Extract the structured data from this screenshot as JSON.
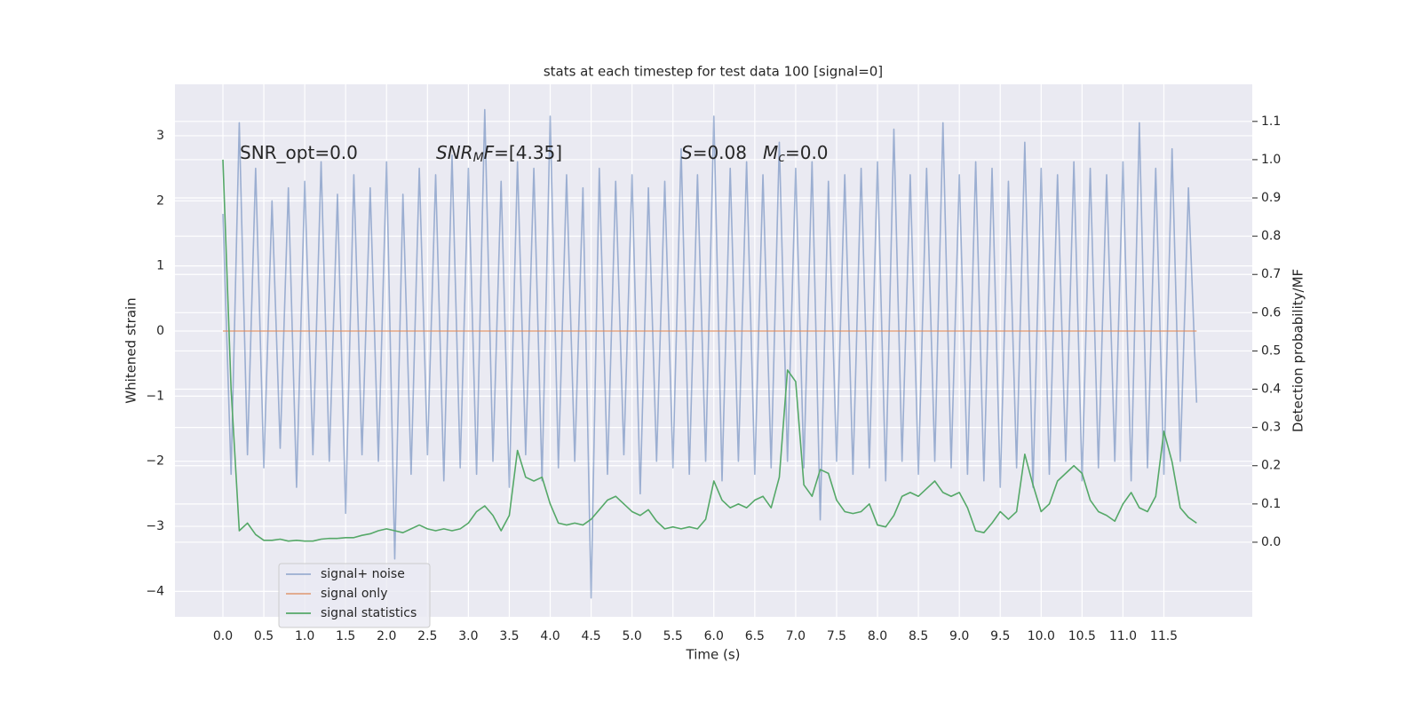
{
  "chart_data": {
    "type": "line",
    "title": "stats at each timestep for test data 100 [signal=0]",
    "xlabel": "Time (s)",
    "ylabel": "Whitened strain",
    "y2label": "Detection probability/MF",
    "grid": true,
    "legend": "lower left",
    "xlim": [
      -0.586,
      12.58
    ],
    "ylim": [
      -4.39,
      3.79
    ],
    "y2lim": [
      -0.195,
      1.197
    ],
    "xticks": [
      {
        "value": 0,
        "label": "0.0"
      },
      0.5,
      {
        "value": 1,
        "label": "1.0"
      },
      1.5,
      {
        "value": 2,
        "label": "2.0"
      },
      2.5,
      {
        "value": 3,
        "label": "3.0"
      },
      3.5,
      {
        "value": 4,
        "label": "4.0"
      },
      4.5,
      {
        "value": 5,
        "label": "5.0"
      },
      5.5,
      {
        "value": 6,
        "label": "6.0"
      },
      6.5,
      {
        "value": 7,
        "label": "7.0"
      },
      7.5,
      {
        "value": 8,
        "label": "8.0"
      },
      8.5,
      {
        "value": 9,
        "label": "9.0"
      },
      9.5,
      {
        "value": 10,
        "label": "10.0"
      },
      10.5,
      {
        "value": 11,
        "label": "11.0"
      },
      11.5
    ],
    "yticks": [
      {
        "value": -4,
        "label": "−4"
      },
      {
        "value": -3,
        "label": "−3"
      },
      {
        "value": -2,
        "label": "−2"
      },
      {
        "value": -1,
        "label": "−1"
      },
      0,
      1,
      2,
      3
    ],
    "y2ticks": [
      {
        "value": 0,
        "label": "0.0"
      },
      0.1,
      0.2,
      0.3,
      0.4,
      0.5,
      0.6,
      0.7,
      0.8,
      0.9,
      {
        "value": 1,
        "label": "1.0"
      },
      1.1
    ],
    "annotations": [
      [
        {
          "text": "SNR_opt=0.0"
        }
      ],
      [
        {
          "text": "SNR",
          "italic": true
        },
        {
          "text": "M",
          "italic": true,
          "sub": true
        },
        {
          "text": "F",
          "italic": true
        },
        {
          "text": "=[4.35]"
        }
      ],
      [
        {
          "text": "S",
          "italic": true
        },
        {
          "text": "=0.08"
        }
      ],
      [
        {
          "text": "M",
          "italic": true
        },
        {
          "text": "c",
          "italic": true,
          "sub": true
        },
        {
          "text": "=0.0"
        }
      ]
    ],
    "x": [
      0,
      0.1,
      0.2,
      0.3,
      0.4,
      0.5,
      0.6,
      0.7,
      0.8,
      0.9,
      1,
      1.1,
      1.2,
      1.3,
      1.4,
      1.5,
      1.6,
      1.7,
      1.8,
      1.9,
      2,
      2.1,
      2.2,
      2.3,
      2.4,
      2.5,
      2.6,
      2.7,
      2.8,
      2.9,
      3,
      3.1,
      3.2,
      3.3,
      3.4,
      3.5,
      3.6,
      3.7,
      3.8,
      3.9,
      4,
      4.1,
      4.2,
      4.3,
      4.4,
      4.5,
      4.6,
      4.7,
      4.8,
      4.9,
      5,
      5.1,
      5.2,
      5.3,
      5.4,
      5.5,
      5.6,
      5.7,
      5.8,
      5.9,
      6,
      6.1,
      6.2,
      6.3,
      6.4,
      6.5,
      6.6,
      6.7,
      6.8,
      6.9,
      7,
      7.1,
      7.2,
      7.3,
      7.4,
      7.5,
      7.6,
      7.7,
      7.8,
      7.9,
      8,
      8.1,
      8.2,
      8.3,
      8.4,
      8.5,
      8.6,
      8.7,
      8.8,
      8.9,
      9,
      9.1,
      9.2,
      9.3,
      9.4,
      9.5,
      9.6,
      9.7,
      9.8,
      9.9,
      10,
      10.1,
      10.2,
      10.3,
      10.4,
      10.5,
      10.6,
      10.7,
      10.8,
      10.9,
      11,
      11.1,
      11.2,
      11.3,
      11.4,
      11.5,
      11.6,
      11.7,
      11.8,
      11.9
    ],
    "series": [
      {
        "name": "signal+ noise",
        "color": "#4c72b0",
        "opacity": 0.5,
        "values": [
          1.8,
          -2.2,
          3.2,
          -1.9,
          2.5,
          -2.1,
          2.0,
          -1.8,
          2.2,
          -2.4,
          2.3,
          -1.9,
          2.6,
          -2.0,
          2.1,
          -2.8,
          2.4,
          -1.9,
          2.2,
          -2.0,
          2.6,
          -3.5,
          2.1,
          -2.2,
          2.5,
          -1.9,
          2.4,
          -2.3,
          2.7,
          -2.1,
          2.5,
          -2.2,
          3.4,
          -2.0,
          2.3,
          -2.4,
          2.6,
          -1.9,
          2.5,
          -2.3,
          3.3,
          -2.1,
          2.4,
          -2.0,
          2.2,
          -4.1,
          2.5,
          -2.2,
          2.3,
          -1.9,
          2.4,
          -2.5,
          2.2,
          -2.0,
          2.3,
          -2.1,
          2.8,
          -2.2,
          2.4,
          -2.0,
          3.3,
          -2.3,
          2.5,
          -2.0,
          2.6,
          -2.2,
          2.4,
          -2.1,
          2.9,
          -2.0,
          2.5,
          -2.1,
          2.6,
          -2.9,
          2.3,
          -2.0,
          2.4,
          -2.2,
          2.5,
          -2.1,
          2.6,
          -2.3,
          3.1,
          -2.0,
          2.4,
          -2.2,
          2.5,
          -2.0,
          3.2,
          -2.1,
          2.4,
          -2.2,
          2.6,
          -2.3,
          2.5,
          -2.4,
          2.3,
          -2.1,
          2.9,
          -2.4,
          2.5,
          -2.2,
          2.4,
          -2.0,
          2.6,
          -2.3,
          2.5,
          -2.1,
          2.4,
          -2.0,
          2.6,
          -2.3,
          3.2,
          -2.1,
          2.5,
          -2.2,
          2.8,
          -2.0,
          2.2,
          -1.1
        ]
      },
      {
        "name": "signal only",
        "color": "#dd8452",
        "opacity": 0.7,
        "values": [
          0,
          0,
          0,
          0,
          0,
          0,
          0,
          0,
          0,
          0,
          0,
          0,
          0,
          0,
          0,
          0,
          0,
          0,
          0,
          0,
          0,
          0,
          0,
          0,
          0,
          0,
          0,
          0,
          0,
          0,
          0,
          0,
          0,
          0,
          0,
          0,
          0,
          0,
          0,
          0,
          0,
          0,
          0,
          0,
          0,
          0,
          0,
          0,
          0,
          0,
          0,
          0,
          0,
          0,
          0,
          0,
          0,
          0,
          0,
          0,
          0,
          0,
          0,
          0,
          0,
          0,
          0,
          0,
          0,
          0,
          0,
          0,
          0,
          0,
          0,
          0,
          0,
          0,
          0,
          0,
          0,
          0,
          0,
          0,
          0,
          0,
          0,
          0,
          0,
          0,
          0,
          0,
          0,
          0,
          0,
          0,
          0,
          0,
          0,
          0,
          0,
          0,
          0,
          0,
          0,
          0,
          0,
          0,
          0,
          0,
          0,
          0,
          0,
          0,
          0,
          0,
          0,
          0,
          0,
          0
        ]
      },
      {
        "name": "signal statistics",
        "color": "#55a868",
        "opacity": 1,
        "axis": "y2",
        "values": [
          1.0,
          0.4,
          0.03,
          0.05,
          0.02,
          0.005,
          0.005,
          0.008,
          0.003,
          0.005,
          0.003,
          0.003,
          0.008,
          0.01,
          0.01,
          0.012,
          0.012,
          0.018,
          0.022,
          0.03,
          0.035,
          0.03,
          0.025,
          0.035,
          0.045,
          0.035,
          0.03,
          0.035,
          0.03,
          0.035,
          0.05,
          0.08,
          0.095,
          0.07,
          0.03,
          0.07,
          0.24,
          0.17,
          0.16,
          0.17,
          0.1,
          0.05,
          0.045,
          0.05,
          0.045,
          0.06,
          0.085,
          0.11,
          0.12,
          0.1,
          0.08,
          0.07,
          0.085,
          0.055,
          0.035,
          0.04,
          0.035,
          0.04,
          0.035,
          0.06,
          0.16,
          0.11,
          0.09,
          0.1,
          0.09,
          0.11,
          0.12,
          0.09,
          0.17,
          0.45,
          0.42,
          0.15,
          0.12,
          0.19,
          0.18,
          0.11,
          0.08,
          0.075,
          0.08,
          0.1,
          0.045,
          0.04,
          0.07,
          0.12,
          0.13,
          0.12,
          0.14,
          0.16,
          0.13,
          0.12,
          0.13,
          0.09,
          0.03,
          0.025,
          0.05,
          0.08,
          0.06,
          0.08,
          0.23,
          0.15,
          0.08,
          0.1,
          0.16,
          0.18,
          0.2,
          0.18,
          0.11,
          0.08,
          0.07,
          0.055,
          0.1,
          0.13,
          0.09,
          0.08,
          0.12,
          0.29,
          0.21,
          0.09,
          0.065,
          0.05
        ]
      }
    ]
  }
}
